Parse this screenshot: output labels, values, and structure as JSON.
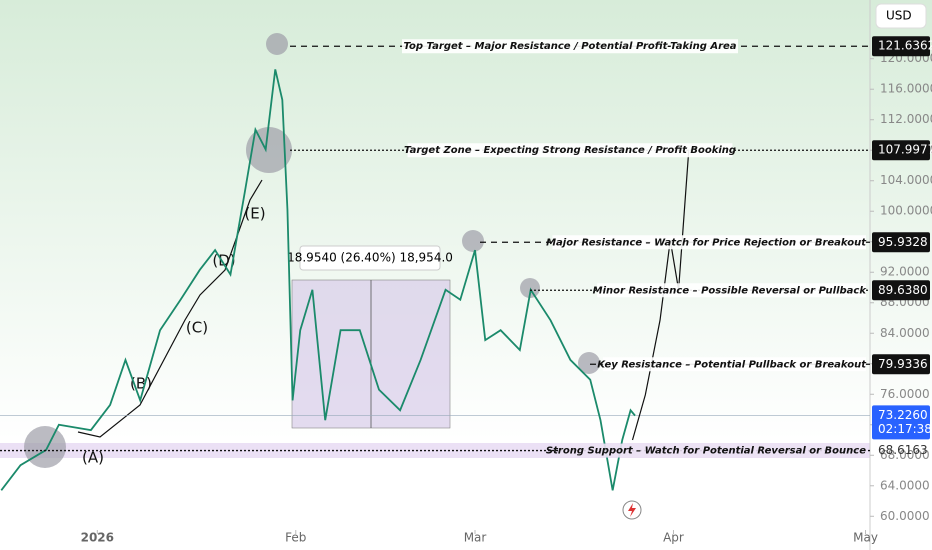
{
  "chart_data": {
    "type": "line",
    "currency": "USD",
    "xlim": [
      -15.2,
      120.7
    ],
    "ylim": [
      58.2,
      127.7
    ],
    "xticks": [
      {
        "value": 0,
        "label": "2026"
      },
      {
        "value": 31,
        "label": "Feb"
      },
      {
        "value": 59,
        "label": "Mar"
      },
      {
        "value": 90,
        "label": "Apr"
      },
      {
        "value": 120,
        "label": "May"
      }
    ],
    "yticks": [
      {
        "value": 60,
        "label": "60.0000"
      },
      {
        "value": 64,
        "label": "64.0000"
      },
      {
        "value": 68,
        "label": "68.0000"
      },
      {
        "value": 72,
        "label": "72.0000"
      },
      {
        "value": 76,
        "label": "76.0000"
      },
      {
        "value": 80,
        "label": "80.0000"
      },
      {
        "value": 84,
        "label": "84.0000"
      },
      {
        "value": 88,
        "label": "88.0000"
      },
      {
        "value": 92,
        "label": "92.0000"
      },
      {
        "value": 96,
        "label": "96.0000"
      },
      {
        "value": 100,
        "label": "100.0000"
      },
      {
        "value": 104,
        "label": "104.0000"
      },
      {
        "value": 108,
        "label": "108.0000"
      },
      {
        "value": 112,
        "label": "112.0000"
      },
      {
        "value": 116,
        "label": "116.0000"
      },
      {
        "value": 120,
        "label": "120.0000"
      }
    ],
    "series": [
      {
        "color": "#1b8a6b",
        "x": [
          -15,
          -12,
          -8,
          -6,
          -1,
          2,
          4.4,
          6.7,
          9.8,
          13,
          16,
          18.4,
          20.8,
          23.1,
          24.7,
          26.3,
          27.8,
          28.9,
          29.7,
          30.5,
          31.7,
          33.6,
          35.6,
          38,
          41,
          44,
          47.3,
          50.5,
          54.4,
          56.7,
          59,
          60.6,
          63,
          66,
          67.7,
          70.8,
          73.9,
          77,
          78.6,
          80.5,
          82,
          83.3,
          84
        ],
        "values": [
          63.4,
          66.7,
          68.7,
          72,
          71.3,
          74.6,
          80.5,
          75.2,
          84.4,
          88.4,
          92.3,
          94.9,
          91.7,
          102.8,
          110.7,
          108.1,
          118.6,
          114.6,
          100.2,
          75.2,
          84.4,
          89.7,
          72.6,
          84.4,
          84.4,
          76.6,
          73.9,
          80.5,
          89.7,
          88.4,
          94.9,
          83.1,
          84.4,
          81.8,
          89.7,
          85.7,
          80.5,
          77.9,
          72.6,
          63.4,
          70,
          73.9,
          73.2
        ]
      },
      {
        "color": "#111111",
        "x": [
          83.6,
          85.6,
          87.9,
          89.5,
          90.8,
          92.4
        ],
        "values": [
          70,
          75.9,
          85.7,
          96.2,
          89.7,
          108.1
        ]
      }
    ],
    "current_price": {
      "value": 73.226,
      "label": "73.2260",
      "countdown": "02:17:38"
    },
    "levels": [
      {
        "value": 121.6362,
        "label": "121.6362",
        "text": "Top Target – Major Resistance / Potential Profit-Taking Area",
        "line": "dashed",
        "boxed": true
      },
      {
        "value": 107.9977,
        "label": "107.9977",
        "text": "Target Zone – Expecting Strong Resistance / Profit Booking",
        "line": "dotted",
        "boxed": true
      },
      {
        "value": 95.9328,
        "label": "95.9328",
        "text": "Major Resistance – Watch for Price Rejection or Breakout",
        "line": "dashed",
        "boxed": true
      },
      {
        "value": 89.638,
        "label": "89.6380",
        "text": "Minor Resistance – Possible Reversal or Pullback",
        "line": "dotted",
        "boxed": true
      },
      {
        "value": 79.9336,
        "label": "79.9336",
        "text": "Key Resistance – Potential Pullback or Breakout",
        "line": "dashed",
        "boxed": true
      },
      {
        "value": 68.6163,
        "label": "68.6163",
        "text": "Strong Support – Watch for Potential Reversal or Bounce",
        "line": "dotted",
        "boxed": false
      }
    ],
    "measure_label": "18.9540 (26.40%) 18,954.0",
    "waves": [
      "(A)",
      "(B)",
      "(C)",
      "(D)",
      "(E)"
    ]
  }
}
